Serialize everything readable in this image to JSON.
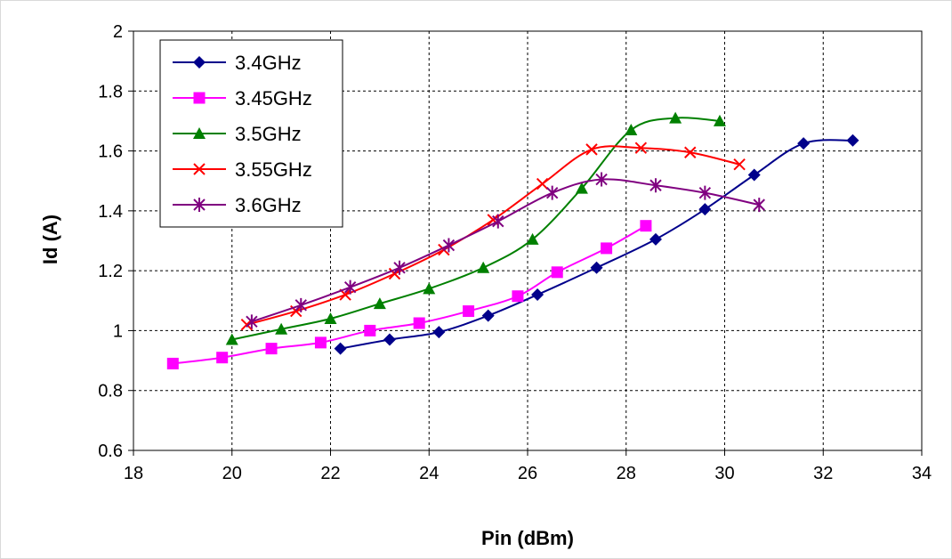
{
  "chart_data": {
    "type": "line",
    "xlabel": "Pin (dBm)",
    "ylabel": "Id (A)",
    "xlim": [
      18,
      34
    ],
    "ylim": [
      0.6,
      2
    ],
    "xticks": [
      "18",
      "20",
      "22",
      "24",
      "26",
      "28",
      "30",
      "32",
      "34"
    ],
    "yticks": [
      "0.6",
      "0.8",
      "1",
      "1.2",
      "1.4",
      "1.6",
      "1.8",
      "2"
    ],
    "grid": "dashed",
    "legend_position": "top-left",
    "series": [
      {
        "name": "3.4GHz",
        "color": "#00008b",
        "marker": "diamond",
        "x": [
          22.2,
          23.2,
          24.2,
          25.2,
          26.2,
          27.4,
          28.6,
          29.6,
          30.6,
          31.6,
          32.6
        ],
        "y": [
          0.94,
          0.97,
          0.995,
          1.05,
          1.12,
          1.21,
          1.305,
          1.405,
          1.52,
          1.625,
          1.635
        ]
      },
      {
        "name": "3.45GHz",
        "color": "#ff00ff",
        "marker": "square",
        "x": [
          18.8,
          19.8,
          20.8,
          21.8,
          22.8,
          23.8,
          24.8,
          25.8,
          26.6,
          27.6,
          28.4
        ],
        "y": [
          0.89,
          0.91,
          0.94,
          0.96,
          1.0,
          1.025,
          1.065,
          1.115,
          1.195,
          1.275,
          1.35
        ]
      },
      {
        "name": "3.5GHz",
        "color": "#008000",
        "marker": "triangle",
        "x": [
          20,
          21,
          22,
          23,
          24,
          25.1,
          26.1,
          27.1,
          28.1,
          29,
          29.9
        ],
        "y": [
          0.97,
          1.005,
          1.04,
          1.09,
          1.14,
          1.21,
          1.305,
          1.475,
          1.67,
          1.71,
          1.7
        ]
      },
      {
        "name": "3.55GHz",
        "color": "#ff0000",
        "marker": "x",
        "x": [
          20.3,
          21.3,
          22.3,
          23.3,
          24.3,
          25.3,
          26.3,
          27.3,
          28.3,
          29.3,
          30.3
        ],
        "y": [
          1.02,
          1.065,
          1.12,
          1.19,
          1.27,
          1.37,
          1.49,
          1.605,
          1.61,
          1.595,
          1.555
        ]
      },
      {
        "name": "3.6GHz",
        "color": "#800080",
        "marker": "asterisk",
        "x": [
          20.4,
          21.4,
          22.4,
          23.4,
          24.4,
          25.4,
          26.5,
          27.5,
          28.6,
          29.6,
          30.7
        ],
        "y": [
          1.03,
          1.085,
          1.145,
          1.21,
          1.285,
          1.365,
          1.46,
          1.505,
          1.485,
          1.46,
          1.42
        ]
      }
    ]
  }
}
